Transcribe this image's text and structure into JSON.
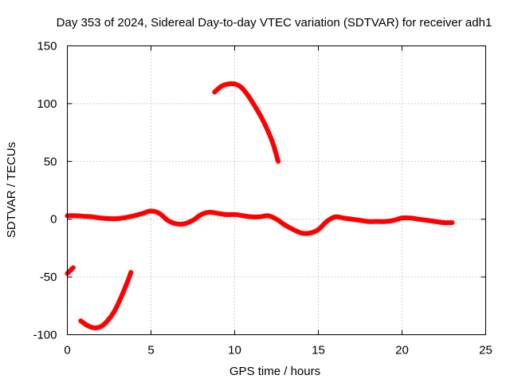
{
  "chart_data": {
    "type": "line",
    "title": "Day 353 of 2024, Sidereal Day-to-day VTEC variation (SDTVAR) for receiver adh1",
    "xlabel": "GPS time / hours",
    "ylabel": "SDTVAR / TECUs",
    "xlim": [
      0,
      25
    ],
    "ylim": [
      -100,
      150
    ],
    "xticks": [
      0,
      5,
      10,
      15,
      20,
      25
    ],
    "yticks": [
      -100,
      -50,
      0,
      50,
      100,
      150
    ],
    "xtick_labels": [
      "0",
      "5",
      "10",
      "15",
      "20",
      "25"
    ],
    "ytick_labels": [
      "-100",
      "-50",
      "0",
      "50",
      "100",
      "150"
    ],
    "grid": true,
    "color": "#ff0000",
    "series": [
      {
        "name": "main-trace",
        "x": [
          0,
          0.5,
          1,
          1.5,
          2,
          2.5,
          3,
          3.5,
          4,
          4.5,
          5,
          5.5,
          6,
          6.5,
          7,
          7.5,
          8,
          8.5,
          9,
          9.5,
          10,
          10.5,
          11,
          11.5,
          12,
          12.5,
          13,
          13.5,
          14,
          14.5,
          15,
          15.5,
          16,
          16.5,
          17,
          17.5,
          18,
          18.5,
          19,
          19.5,
          20,
          20.5,
          21,
          21.5,
          22,
          22.5,
          23
        ],
        "y": [
          3,
          3,
          2.5,
          2,
          1,
          0.5,
          0.5,
          1.5,
          3,
          5,
          7,
          5,
          -1,
          -4,
          -4,
          -1,
          4,
          6,
          5,
          4,
          4,
          3,
          2,
          2,
          3,
          0,
          -5,
          -9,
          -12,
          -12,
          -9,
          -2,
          2,
          1,
          0,
          -1,
          -2,
          -2,
          -2,
          -1,
          1,
          1,
          0,
          -1,
          -2,
          -3,
          -3
        ]
      },
      {
        "name": "left-short-segment",
        "x": [
          0,
          0.35
        ],
        "y": [
          -47,
          -42
        ]
      },
      {
        "name": "left-arc",
        "x": [
          0.8,
          1.2,
          1.6,
          2.0,
          2.4,
          2.8,
          3.2,
          3.6,
          3.8
        ],
        "y": [
          -88,
          -92,
          -94,
          -93,
          -88,
          -80,
          -68,
          -54,
          -46
        ]
      },
      {
        "name": "upper-arc",
        "x": [
          8.8,
          9.2,
          9.6,
          10.0,
          10.4,
          10.8,
          11.2,
          11.6,
          12.0,
          12.3,
          12.6
        ],
        "y": [
          110,
          115,
          117,
          117,
          114,
          107,
          98,
          88,
          76,
          65,
          50
        ]
      }
    ]
  }
}
